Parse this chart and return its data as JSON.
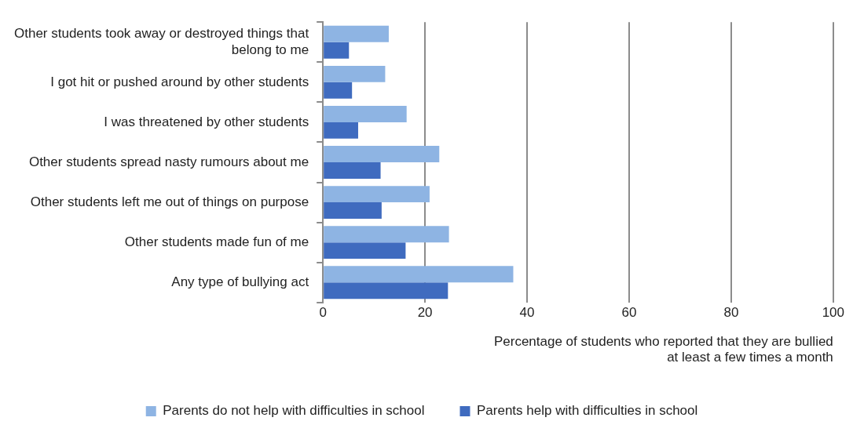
{
  "chart_data": {
    "type": "bar",
    "orientation": "horizontal",
    "xlabel": "Percentage of students who reported that they are bullied at least a few times a month",
    "categories": [
      "Other students took away or destroyed things that belong to me",
      "I got hit or pushed around by other students",
      "I was threatened by other students",
      "Other students spread nasty rumours about me",
      "Other students left me out of things on purpose",
      "Other students made fun of me",
      "Any type of bullying act"
    ],
    "series": [
      {
        "name": "Parents do not help with difficulties in school",
        "color": "#8eb4e3",
        "values": [
          12.9,
          12.2,
          16.4,
          22.8,
          20.9,
          24.7,
          37.3
        ]
      },
      {
        "name": "Parents help with difficulties in school",
        "color": "#3f6bbf",
        "values": [
          5.1,
          5.7,
          6.9,
          11.3,
          11.5,
          16.2,
          24.5
        ]
      }
    ],
    "xlim": [
      0,
      100
    ],
    "xticks": [
      0,
      20,
      40,
      60,
      80,
      100
    ],
    "grid": "x",
    "legend": "bottom"
  }
}
